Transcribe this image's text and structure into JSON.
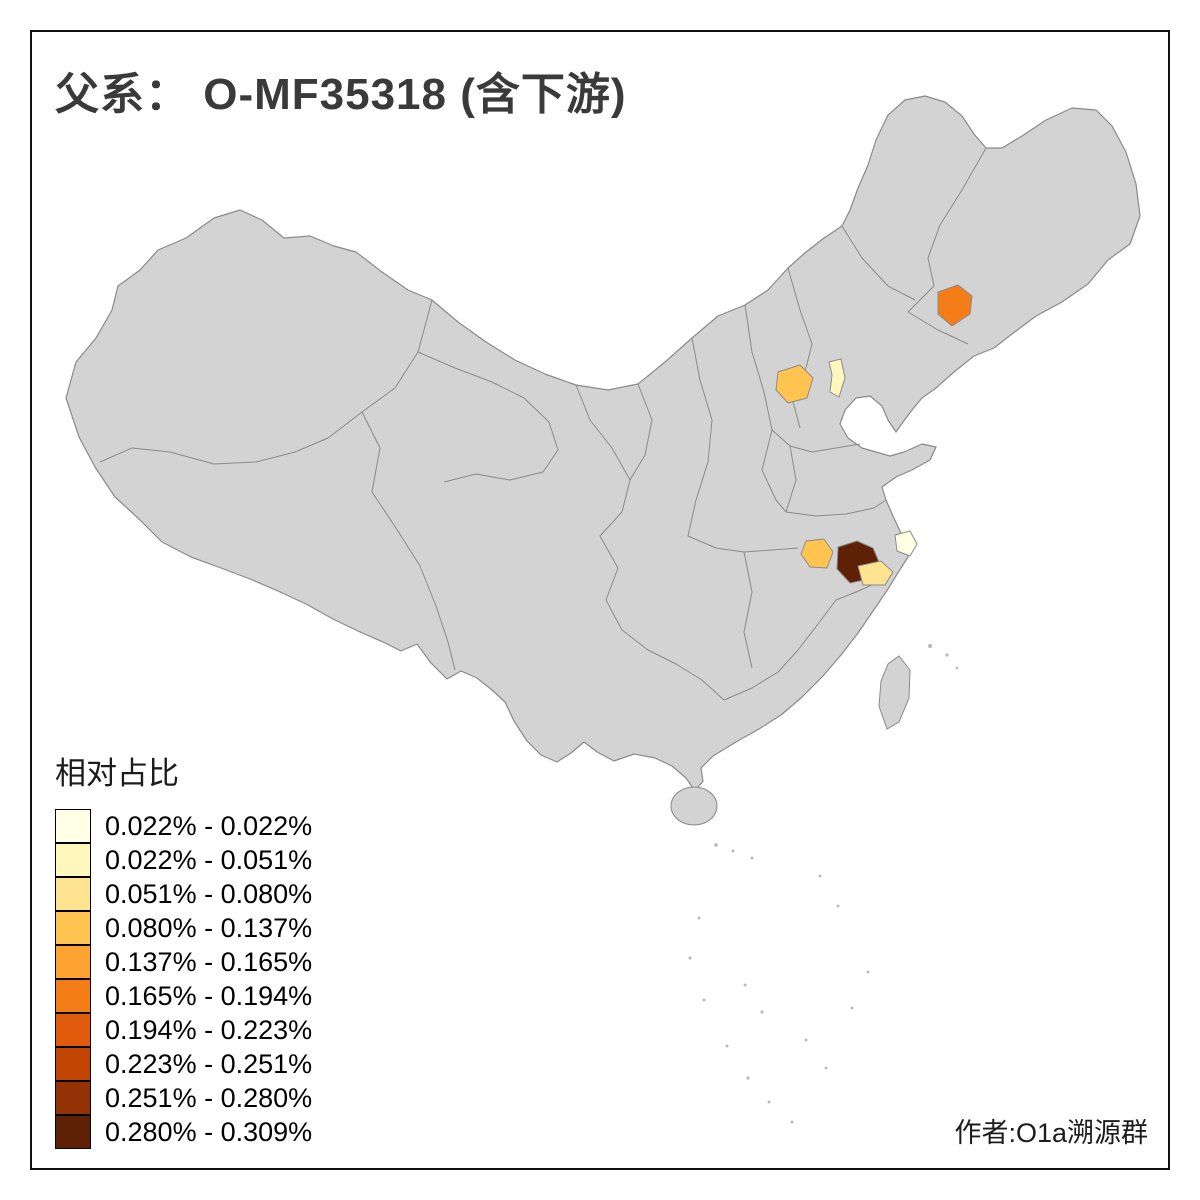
{
  "title": "父系： O-MF35318 (含下游)",
  "legend": {
    "title": "相对占比",
    "items": [
      {
        "label": "0.022% - 0.022%",
        "color": "#FFFFE5"
      },
      {
        "label": "0.022% - 0.051%",
        "color": "#FFF7BC"
      },
      {
        "label": "0.051% - 0.080%",
        "color": "#FEE391"
      },
      {
        "label": "0.080% - 0.137%",
        "color": "#FEC44F"
      },
      {
        "label": "0.137% - 0.165%",
        "color": "#FEA332"
      },
      {
        "label": "0.165% - 0.194%",
        "color": "#F57D17"
      },
      {
        "label": "0.194% - 0.223%",
        "color": "#E05C0C"
      },
      {
        "label": "0.223% - 0.251%",
        "color": "#C24402"
      },
      {
        "label": "0.251% - 0.280%",
        "color": "#933204"
      },
      {
        "label": "0.280% - 0.309%",
        "color": "#5E2105"
      }
    ]
  },
  "author": "作者:O1a溯源群",
  "map": {
    "base_fill": "#D3D3D3",
    "border_color": "#8A8A8A",
    "regions": [
      {
        "id": "jilin",
        "name": "Jilin",
        "range": "0.165% - 0.194%",
        "color": "#F57D17"
      },
      {
        "id": "beijing",
        "name": "Beijing",
        "range": "0.080% - 0.137%",
        "color": "#FEC44F"
      },
      {
        "id": "tianjin",
        "name": "Tianjin",
        "range": "0.022% - 0.051%",
        "color": "#FFF7BC"
      },
      {
        "id": "hubei",
        "name": "Hubei",
        "range": "0.080% - 0.137%",
        "color": "#FEC44F"
      },
      {
        "id": "anhui",
        "name": "Anhui",
        "range": "0.280% - 0.309%",
        "color": "#5E2105"
      },
      {
        "id": "zhejiang",
        "name": "Zhejiang",
        "range": "0.051% - 0.080%",
        "color": "#FEE391"
      },
      {
        "id": "shanghai",
        "name": "Shanghai",
        "range": "0.022% - 0.022%",
        "color": "#FFFFE5"
      }
    ]
  }
}
